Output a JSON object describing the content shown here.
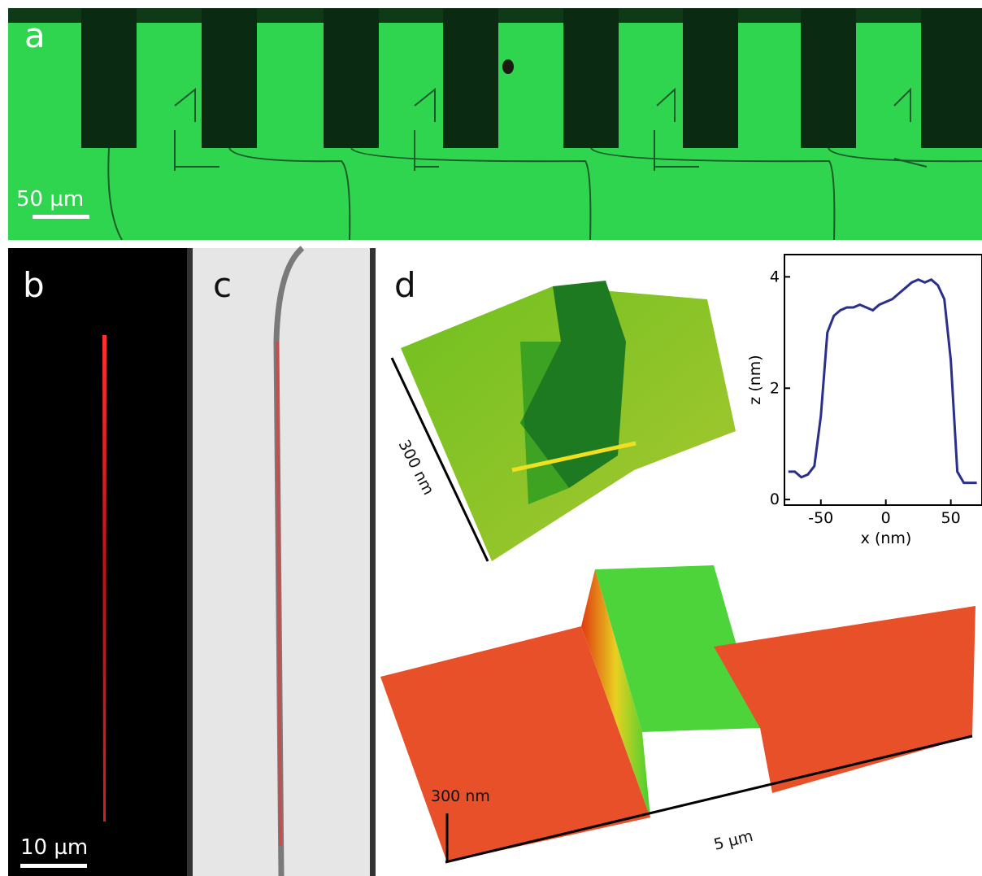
{
  "panels": {
    "a": {
      "label": "a",
      "scale_bar": "50 µm"
    },
    "b": {
      "label": "b",
      "scale_bar": "10 µm"
    },
    "c": {
      "label": "c"
    },
    "d": {
      "label": "d",
      "small_axis": "300 nm",
      "height_axis": "300 nm",
      "length_axis": "5 µm"
    }
  },
  "chart_data": {
    "type": "line",
    "xlabel": "x (nm)",
    "ylabel": "z (nm)",
    "x": [
      -75,
      -70,
      -65,
      -60,
      -55,
      -50,
      -45,
      -40,
      -35,
      -30,
      -25,
      -20,
      -15,
      -10,
      -5,
      0,
      5,
      10,
      15,
      20,
      25,
      30,
      35,
      40,
      45,
      50,
      55,
      60,
      65,
      70
    ],
    "series": [
      {
        "color": "#2b2f8c",
        "values": [
          0.5,
          0.5,
          0.4,
          0.45,
          0.6,
          1.5,
          3.0,
          3.3,
          3.4,
          3.45,
          3.45,
          3.5,
          3.45,
          3.4,
          3.5,
          3.55,
          3.6,
          3.7,
          3.8,
          3.9,
          3.95,
          3.9,
          3.95,
          3.85,
          3.6,
          2.5,
          0.5,
          0.3,
          0.3,
          0.3
        ]
      }
    ],
    "xlim": [
      -78,
      74
    ],
    "ylim": [
      -0.1,
      4.4
    ],
    "xticks": [
      -50,
      0,
      50
    ],
    "yticks": [
      0,
      2,
      4
    ]
  }
}
